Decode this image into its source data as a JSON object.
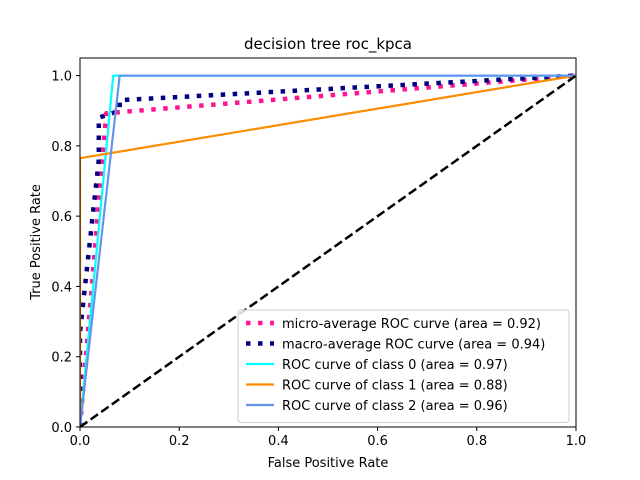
{
  "chart_data": {
    "type": "line",
    "title": "decision tree roc_kpca",
    "xlabel": "False Positive Rate",
    "ylabel": "True Positive Rate",
    "xlim": [
      0.0,
      1.0
    ],
    "ylim": [
      0.0,
      1.05
    ],
    "xticks": [
      "0.0",
      "0.2",
      "0.4",
      "0.6",
      "0.8",
      "1.0"
    ],
    "yticks": [
      "0.0",
      "0.2",
      "0.4",
      "0.6",
      "0.8",
      "1.0"
    ],
    "grid": false,
    "legend_position": "lower-right",
    "series": [
      {
        "name": "micro-average ROC curve (area = 0.92)",
        "color": "#ff1493",
        "style": "dotted",
        "x": [
          0.0,
          0.053,
          1.0
        ],
        "y": [
          0.0,
          0.893,
          1.0
        ]
      },
      {
        "name": "macro-average ROC curve (area = 0.94)",
        "color": "#000080",
        "style": "dotted",
        "x": [
          0.0,
          0.0,
          0.038,
          0.038,
          0.08,
          0.08,
          1.0
        ],
        "y": [
          0.0,
          0.27,
          0.76,
          0.88,
          0.9,
          0.93,
          1.0
        ]
      },
      {
        "name": "ROC curve of class 0 (area = 0.97)",
        "color": "#00ffff",
        "style": "solid",
        "x": [
          0.0,
          0.067,
          1.0
        ],
        "y": [
          0.0,
          1.0,
          1.0
        ]
      },
      {
        "name": "ROC curve of class 1 (area = 0.88)",
        "color": "#ff8c00",
        "style": "solid",
        "x": [
          0.0,
          0.0,
          1.0
        ],
        "y": [
          0.0,
          0.765,
          1.0
        ]
      },
      {
        "name": "ROC curve of class 2 (area = 0.96)",
        "color": "#6495ed",
        "style": "solid",
        "x": [
          0.0,
          0.08,
          1.0
        ],
        "y": [
          0.0,
          1.0,
          1.0
        ]
      }
    ],
    "reference_line": {
      "color": "#000000",
      "style": "dashed",
      "x": [
        0.0,
        1.0
      ],
      "y": [
        0.0,
        1.0
      ]
    }
  }
}
